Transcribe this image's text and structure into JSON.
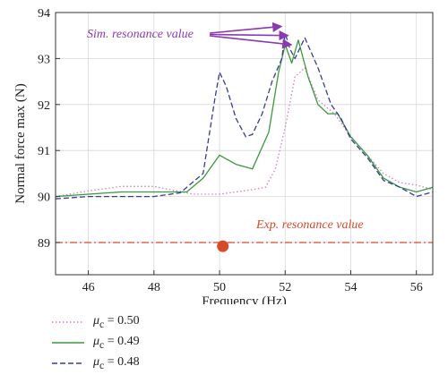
{
  "chart_data": {
    "type": "line",
    "xlabel": "Frequency (Hz)",
    "ylabel": "Normal force max (N)",
    "xlim": [
      45,
      56.5
    ],
    "ylim": [
      88.3,
      94
    ],
    "xticks": [
      46,
      48,
      50,
      52,
      54,
      56
    ],
    "yticks": [
      89,
      90,
      91,
      92,
      93,
      94
    ],
    "grid": true,
    "legend_position": "below-left",
    "colors": {
      "mu050": "#d080c0",
      "mu049": "#3a9a3a",
      "mu048": "#3a3a9a",
      "exp": "#d84a2a",
      "sim_annot": "#8a3ab0"
    },
    "series": [
      {
        "name": "μc = 0.50",
        "legend_symbol": "μ",
        "legend_sub": "c",
        "legend_value": " = 0.50",
        "style": "dotted",
        "x": [
          45,
          46,
          47,
          48,
          48.7,
          49.2,
          50,
          50.5,
          51,
          51.4,
          51.7,
          52,
          52.3,
          52.6,
          53,
          53.5,
          54,
          54.5,
          55,
          55.5,
          56,
          56.5
        ],
        "y": [
          90.0,
          90.12,
          90.22,
          90.22,
          90.12,
          90.05,
          90.05,
          90.1,
          90.15,
          90.2,
          90.6,
          91.5,
          92.6,
          92.8,
          92.1,
          91.8,
          91.3,
          90.9,
          90.5,
          90.3,
          90.25,
          90.15
        ]
      },
      {
        "name": "μc = 0.49",
        "legend_symbol": "μ",
        "legend_sub": "c",
        "legend_value": " = 0.49",
        "style": "solid",
        "x": [
          45,
          46,
          47,
          48,
          48.5,
          49,
          49.5,
          50,
          50.5,
          51,
          51.5,
          51.8,
          52,
          52.2,
          52.4,
          52.7,
          53,
          53.3,
          53.6,
          54,
          54.5,
          55,
          55.5,
          56,
          56.5
        ],
        "y": [
          90.0,
          90.05,
          90.1,
          90.1,
          90.1,
          90.1,
          90.4,
          90.9,
          90.7,
          90.6,
          91.4,
          92.7,
          93.3,
          92.9,
          93.4,
          92.6,
          92.0,
          91.8,
          91.8,
          91.3,
          90.9,
          90.4,
          90.2,
          90.1,
          90.2
        ]
      },
      {
        "name": "μc = 0.48",
        "legend_symbol": "μ",
        "legend_sub": "c",
        "legend_value": " = 0.48",
        "style": "dashed",
        "x": [
          45,
          46,
          47,
          48,
          48.8,
          49.5,
          49.85,
          50,
          50.2,
          50.5,
          50.8,
          51,
          51.3,
          51.6,
          51.9,
          52,
          52.15,
          52.3,
          52.6,
          53,
          53.4,
          53.7,
          54,
          54.5,
          55,
          55.5,
          56,
          56.5
        ],
        "y": [
          89.95,
          90.0,
          90.0,
          90.0,
          90.08,
          90.5,
          92.1,
          92.7,
          92.4,
          91.7,
          91.3,
          91.35,
          91.8,
          92.5,
          93.0,
          93.55,
          93.2,
          93.0,
          93.45,
          92.8,
          92.0,
          91.7,
          91.25,
          90.85,
          90.35,
          90.2,
          90.0,
          90.1
        ]
      }
    ],
    "exp_line": {
      "y": 89.0,
      "style": "dash-dot"
    },
    "exp_point": {
      "x": 50.1,
      "y": 88.92
    },
    "annotations": [
      {
        "text": "Sim. resonance value",
        "target_points": [
          [
            52.0,
            93.7
          ],
          [
            52.2,
            93.5
          ],
          [
            52.3,
            93.3
          ]
        ]
      },
      {
        "text": "Exp. resonance value"
      }
    ]
  }
}
